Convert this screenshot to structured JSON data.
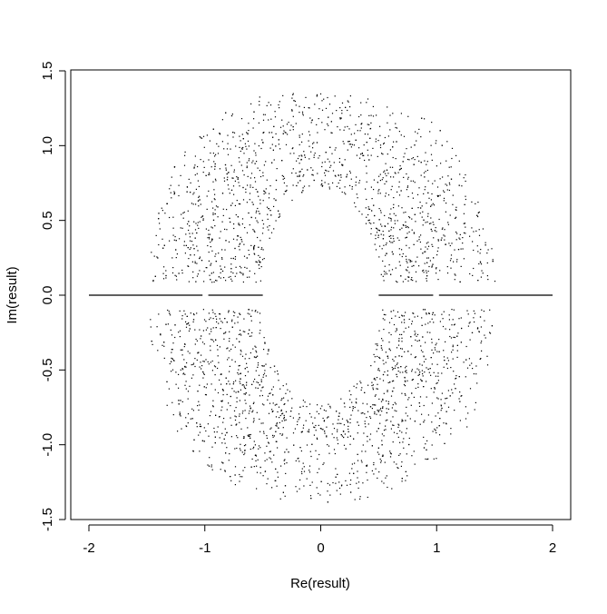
{
  "chart_data": {
    "type": "scatter",
    "title": "",
    "xlabel": "Re(result)",
    "ylabel": "Im(result)",
    "xlim": [
      -2.15,
      2.15
    ],
    "ylim": [
      -1.5,
      1.5
    ],
    "x_ticks": [
      -2,
      -1,
      0,
      1,
      2
    ],
    "x_tick_labels": [
      "-2",
      "-1",
      "0",
      "1",
      "2"
    ],
    "y_ticks": [
      -1.5,
      -1.0,
      -0.5,
      0.0,
      0.5,
      1.0,
      1.5
    ],
    "y_tick_labels": [
      "-1.5",
      "-1.0",
      "-0.5",
      "0.0",
      "0.5",
      "1.0",
      "1.5"
    ],
    "grid": false,
    "legend": "none",
    "point_color": "#000000",
    "series": [
      {
        "description_role": "point cloud",
        "shape": "roots scattered in a ring symmetric about both axes; inner empty oval approx |Re|<0.5, |Im|<0.7; outer extent approx |Re|<1.5, |Im|<1.38",
        "real_axis_segments": [
          [
            -2.0,
            -1.02
          ],
          [
            -0.97,
            -0.5
          ],
          [
            0.5,
            0.97
          ],
          [
            1.02,
            2.0
          ]
        ]
      }
    ]
  }
}
